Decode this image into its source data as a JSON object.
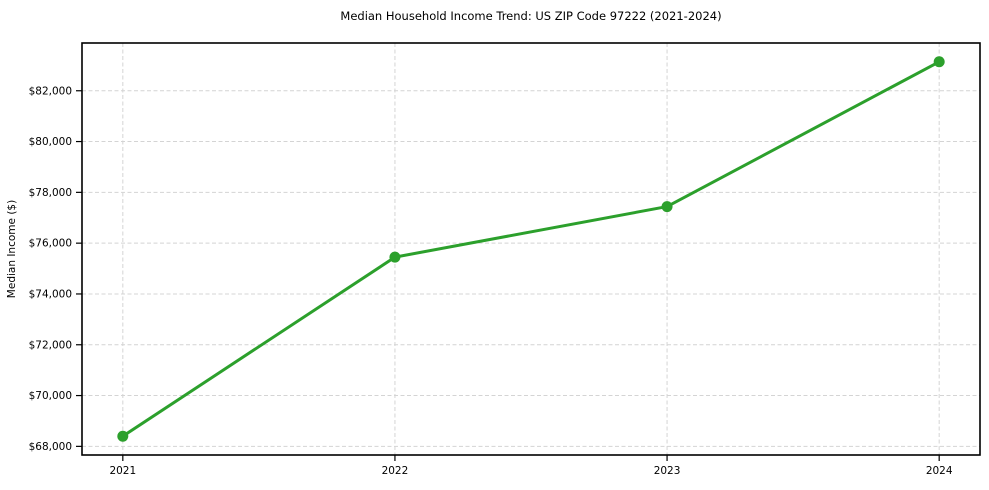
{
  "page": {
    "background_color": "#ffffff"
  },
  "chart_data": {
    "type": "line",
    "title": "Median Household Income Trend: US ZIP Code 97222 (2021-2024)",
    "xlabel": "",
    "ylabel": "Median Income ($)",
    "x": [
      2021,
      2022,
      2023,
      2024
    ],
    "x_tick_labels": [
      "2021",
      "2022",
      "2023",
      "2024"
    ],
    "values": [
      68400,
      75450,
      77440,
      83140
    ],
    "y_ticks": [
      68000,
      70000,
      72000,
      74000,
      76000,
      78000,
      80000,
      82000
    ],
    "y_tick_labels": [
      "$68,000",
      "$70,000",
      "$72,000",
      "$74,000",
      "$76,000",
      "$78,000",
      "$80,000",
      "$82,000"
    ],
    "xlim": [
      2020.85,
      2024.15
    ],
    "ylim": [
      67660,
      83880
    ],
    "grid": true,
    "grid_style": "dashed",
    "legend": "none",
    "line_color": "#2ca02c",
    "marker": "circle",
    "grid_color": "#d4d4d4",
    "axis_color": "#000000",
    "text_color": "#000000"
  }
}
